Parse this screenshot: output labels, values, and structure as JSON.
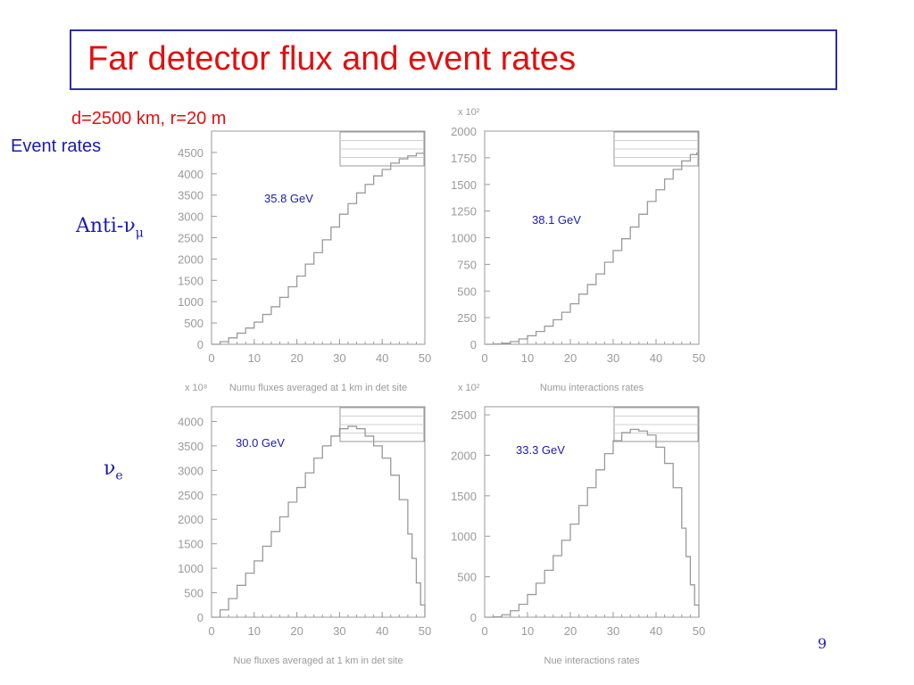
{
  "slide": {
    "title": "Far detector flux and event rates",
    "subtitle": "d=2500 km, r=20 m",
    "section_label": "Event rates",
    "row_labels": [
      {
        "prefix": "Anti-",
        "symbol": "ν",
        "subscript": "μ"
      },
      {
        "prefix": "",
        "symbol": "ν",
        "subscript": "e"
      }
    ],
    "page_number": "9"
  },
  "colors": {
    "title": "#e01010",
    "label": "#1a1ab0",
    "frame": "#2e2ea8",
    "plot": "#9a9a9a",
    "annotation": "#1a1ab0"
  },
  "chart_data": [
    {
      "type": "line",
      "xlabel": "Numu fluxes averaged at 1 km in det site",
      "annotation": "35.8 GeV",
      "xlim": [
        0,
        50
      ],
      "ylim": [
        0,
        5000
      ],
      "yscale_label": "",
      "xticks": [
        0,
        10,
        20,
        30,
        40,
        50
      ],
      "yticks": [
        0,
        500,
        1000,
        1500,
        2000,
        2500,
        3000,
        3500,
        4000,
        4500
      ],
      "x": [
        0,
        2,
        4,
        6,
        8,
        10,
        12,
        14,
        16,
        18,
        20,
        22,
        24,
        26,
        28,
        30,
        32,
        34,
        36,
        38,
        40,
        42,
        44,
        46,
        48,
        49.5
      ],
      "y": [
        0,
        60,
        150,
        260,
        380,
        520,
        700,
        880,
        1100,
        1350,
        1600,
        1880,
        2150,
        2450,
        2750,
        3050,
        3300,
        3550,
        3750,
        3950,
        4100,
        4250,
        4350,
        4420,
        4480,
        4500
      ]
    },
    {
      "type": "line",
      "xlabel": "Numu interactions rates",
      "annotation": "38.1 GeV",
      "xlim": [
        0,
        50
      ],
      "ylim": [
        0,
        2000
      ],
      "yscale_label": "x 10²",
      "xticks": [
        0,
        10,
        20,
        30,
        40,
        50
      ],
      "yticks": [
        0,
        250,
        500,
        750,
        1000,
        1250,
        1500,
        1750,
        2000
      ],
      "x": [
        0,
        2,
        4,
        6,
        8,
        10,
        12,
        14,
        16,
        18,
        20,
        22,
        24,
        26,
        28,
        30,
        32,
        34,
        36,
        38,
        40,
        42,
        44,
        46,
        48,
        49.5
      ],
      "y": [
        0,
        3,
        10,
        25,
        50,
        80,
        120,
        170,
        230,
        300,
        380,
        470,
        560,
        660,
        770,
        880,
        990,
        1100,
        1220,
        1340,
        1450,
        1550,
        1640,
        1720,
        1780,
        1800
      ]
    },
    {
      "type": "line",
      "xlabel": "Nue fluxes averaged at 1 km in det site",
      "annotation": "30.0 GeV",
      "xlim": [
        0,
        50
      ],
      "ylim": [
        0,
        4300
      ],
      "yscale_label": "x 10⁸",
      "xticks": [
        0,
        10,
        20,
        30,
        40,
        50
      ],
      "yticks": [
        0,
        500,
        1000,
        1500,
        2000,
        2500,
        3000,
        3500,
        4000
      ],
      "x": [
        0,
        2,
        4,
        6,
        8,
        10,
        12,
        14,
        16,
        18,
        20,
        22,
        24,
        26,
        28,
        30,
        32,
        34,
        36,
        38,
        40,
        42,
        44,
        46,
        47,
        48,
        49,
        50
      ],
      "y": [
        0,
        150,
        380,
        650,
        900,
        1150,
        1450,
        1750,
        2050,
        2350,
        2650,
        2950,
        3250,
        3500,
        3700,
        3850,
        3900,
        3850,
        3700,
        3500,
        3250,
        2900,
        2400,
        1700,
        1200,
        700,
        250,
        0
      ]
    },
    {
      "type": "line",
      "xlabel": "Nue interactions rates",
      "annotation": "33.3 GeV",
      "xlim": [
        0,
        50
      ],
      "ylim": [
        0,
        2600
      ],
      "yscale_label": "x 10²",
      "xticks": [
        0,
        10,
        20,
        30,
        40,
        50
      ],
      "yticks": [
        0,
        500,
        1000,
        1500,
        2000,
        2500
      ],
      "x": [
        0,
        2,
        4,
        6,
        8,
        10,
        12,
        14,
        16,
        18,
        20,
        22,
        24,
        26,
        28,
        30,
        32,
        34,
        36,
        38,
        40,
        42,
        44,
        46,
        47,
        48,
        49,
        50
      ],
      "y": [
        0,
        5,
        30,
        80,
        160,
        280,
        420,
        580,
        760,
        950,
        1150,
        1380,
        1600,
        1820,
        2020,
        2180,
        2280,
        2320,
        2300,
        2250,
        2100,
        1900,
        1600,
        1100,
        750,
        400,
        150,
        0
      ]
    }
  ]
}
